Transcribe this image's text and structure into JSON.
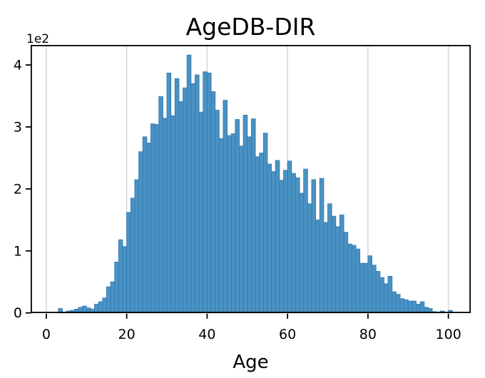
{
  "title": "AgeDB-DIR",
  "xlabel": "Age",
  "offset_text": "1e2",
  "colors": {
    "bar_fill": "#4b92c3",
    "bar_edge": "#2f7cb6",
    "grid": "#d9d9d9",
    "spine": "#000000",
    "text": "#000000",
    "background": "#ffffff"
  },
  "chart_data": {
    "type": "bar",
    "subtype": "histogram",
    "title": "AgeDB-DIR",
    "xlabel": "Age",
    "ylabel": "",
    "y_offset_text": "1e2",
    "bin_start_age": 3,
    "bin_width": 1,
    "x_ticks": [
      0,
      20,
      40,
      60,
      80,
      100
    ],
    "y_tick_labels": [
      "0",
      "1",
      "2",
      "3",
      "4"
    ],
    "y_tick_counts": [
      0,
      100,
      200,
      300,
      400
    ],
    "xlim": [
      -4,
      105.6
    ],
    "ylim": [
      0,
      432
    ],
    "grid": "vertical gridlines only, light gray, below bars",
    "legend_position": "none",
    "values": [
      7,
      1,
      3,
      4,
      6,
      9,
      11,
      8,
      6,
      14,
      18,
      24,
      42,
      50,
      82,
      118,
      107,
      162,
      185,
      215,
      260,
      284,
      274,
      305,
      304,
      349,
      314,
      387,
      318,
      378,
      341,
      363,
      416,
      370,
      384,
      324,
      389,
      387,
      357,
      327,
      281,
      343,
      286,
      289,
      312,
      269,
      319,
      284,
      313,
      252,
      258,
      290,
      240,
      228,
      246,
      214,
      230,
      245,
      225,
      218,
      193,
      232,
      176,
      215,
      150,
      217,
      146,
      176,
      156,
      139,
      158,
      130,
      111,
      109,
      103,
      80,
      80,
      92,
      77,
      67,
      57,
      47,
      59,
      34,
      30,
      23,
      21,
      19,
      19,
      14,
      18,
      9,
      7,
      2,
      1,
      3,
      0,
      4
    ]
  }
}
